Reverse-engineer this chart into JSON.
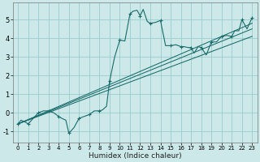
{
  "xlabel": "Humidex (Indice chaleur)",
  "bg_color": "#cce8e8",
  "grid_color": "#99cccc",
  "line_color": "#1a6b6b",
  "xlim": [
    -0.5,
    23.5
  ],
  "ylim": [
    -1.6,
    5.9
  ],
  "xticks": [
    0,
    1,
    2,
    3,
    4,
    5,
    6,
    7,
    8,
    9,
    10,
    11,
    12,
    13,
    14,
    15,
    16,
    17,
    18,
    19,
    20,
    21,
    22,
    23
  ],
  "yticks": [
    -1,
    0,
    1,
    2,
    3,
    4,
    5
  ],
  "main_x": [
    0,
    0.3,
    0.7,
    1.0,
    1.5,
    2.0,
    2.5,
    3.0,
    3.5,
    4.0,
    4.3,
    4.7,
    5.0,
    5.5,
    6.0,
    6.5,
    7.0,
    7.5,
    8.0,
    8.3,
    8.7,
    9.0,
    9.5,
    10.0,
    10.5,
    11.0,
    11.3,
    11.7,
    12.0,
    12.3,
    12.7,
    13.0,
    13.5,
    14.0,
    14.5,
    15.0,
    15.5,
    16.0,
    16.3,
    16.7,
    17.0,
    17.3,
    17.7,
    18.0,
    18.5,
    19.0,
    19.5,
    20.0,
    20.5,
    21.0,
    21.3,
    21.7,
    22.0,
    22.5,
    23.0
  ],
  "main_y": [
    -0.6,
    -0.4,
    -0.5,
    -0.6,
    -0.3,
    0.0,
    0.1,
    0.1,
    0.0,
    -0.2,
    -0.3,
    -0.4,
    -1.1,
    -0.8,
    -0.3,
    -0.2,
    -0.1,
    0.1,
    0.1,
    0.15,
    0.35,
    1.7,
    3.0,
    3.9,
    3.85,
    5.3,
    5.45,
    5.5,
    5.2,
    5.55,
    4.9,
    4.8,
    4.85,
    4.95,
    3.6,
    3.6,
    3.65,
    3.55,
    3.55,
    3.5,
    3.5,
    3.2,
    3.55,
    3.5,
    3.1,
    3.8,
    3.8,
    4.1,
    4.15,
    4.1,
    4.4,
    4.4,
    5.0,
    4.5,
    5.1
  ],
  "marker_x": [
    0,
    1,
    2,
    3,
    4,
    5,
    6,
    7,
    8,
    9,
    10,
    11,
    12,
    13,
    14,
    15,
    16,
    17,
    18,
    19,
    20,
    21,
    22,
    23
  ],
  "marker_y": [
    -0.6,
    -0.6,
    0.0,
    0.1,
    -0.2,
    -1.1,
    -0.3,
    -0.1,
    0.1,
    1.7,
    3.9,
    5.3,
    5.2,
    4.8,
    4.95,
    3.6,
    3.55,
    3.5,
    3.5,
    3.8,
    4.1,
    4.1,
    5.0,
    5.1
  ],
  "line1_x": [
    0,
    23
  ],
  "line1_y": [
    -0.6,
    4.5
  ],
  "line2_x": [
    0,
    23
  ],
  "line2_y": [
    -0.6,
    4.8
  ],
  "line3_x": [
    0,
    23
  ],
  "line3_y": [
    -0.6,
    4.1
  ]
}
